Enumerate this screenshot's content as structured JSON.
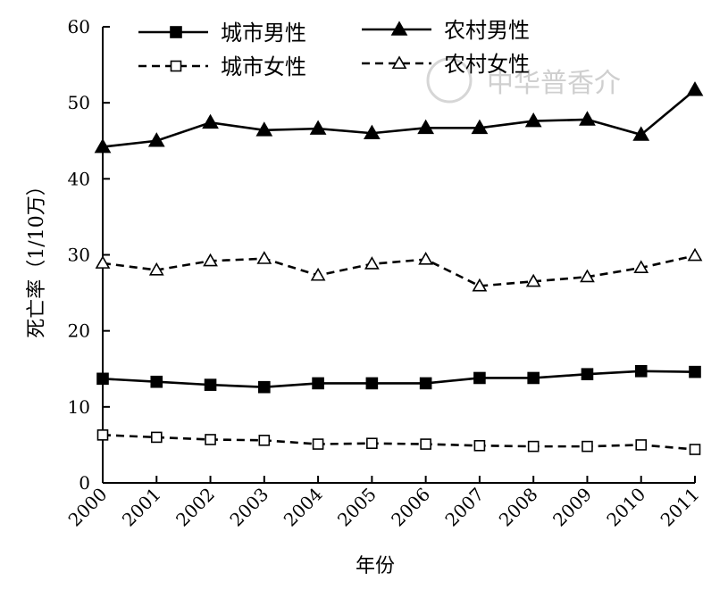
{
  "chart_data": {
    "type": "line",
    "title": "",
    "xlabel": "年份",
    "ylabel": "死亡率（1/10万）",
    "ylim": [
      0,
      60
    ],
    "yticks": [
      "0",
      "10",
      "20",
      "30",
      "40",
      "50",
      "60"
    ],
    "categories": [
      "2000",
      "2001",
      "2002",
      "2003",
      "2004",
      "2005",
      "2006",
      "2007",
      "2008",
      "2009",
      "2010",
      "2011"
    ],
    "series": [
      {
        "name": "城市男性",
        "values": [
          13.7,
          13.3,
          12.9,
          12.6,
          13.1,
          13.1,
          13.1,
          13.8,
          13.8,
          14.3,
          14.7,
          14.6
        ],
        "line": "solid",
        "marker": "square",
        "filled": true
      },
      {
        "name": "农村男性",
        "values": [
          44.2,
          45.0,
          47.4,
          46.4,
          46.6,
          46.0,
          46.7,
          46.7,
          47.6,
          47.8,
          45.8,
          51.7
        ],
        "line": "solid",
        "marker": "triangle",
        "filled": true
      },
      {
        "name": "城市女性",
        "values": [
          6.3,
          6.0,
          5.7,
          5.6,
          5.1,
          5.2,
          5.1,
          4.9,
          4.8,
          4.8,
          5.0,
          4.4
        ],
        "line": "dashed",
        "marker": "square",
        "filled": false
      },
      {
        "name": "农村女性",
        "values": [
          28.9,
          28.0,
          29.2,
          29.5,
          27.3,
          28.8,
          29.4,
          25.9,
          26.5,
          27.1,
          28.3,
          29.9
        ],
        "line": "dashed",
        "marker": "triangle",
        "filled": false
      }
    ],
    "legend_position": "top",
    "grid": false,
    "colors": {
      "line": "#000000",
      "watermark": "#cfcfcf"
    },
    "watermark": "中华普香介"
  }
}
